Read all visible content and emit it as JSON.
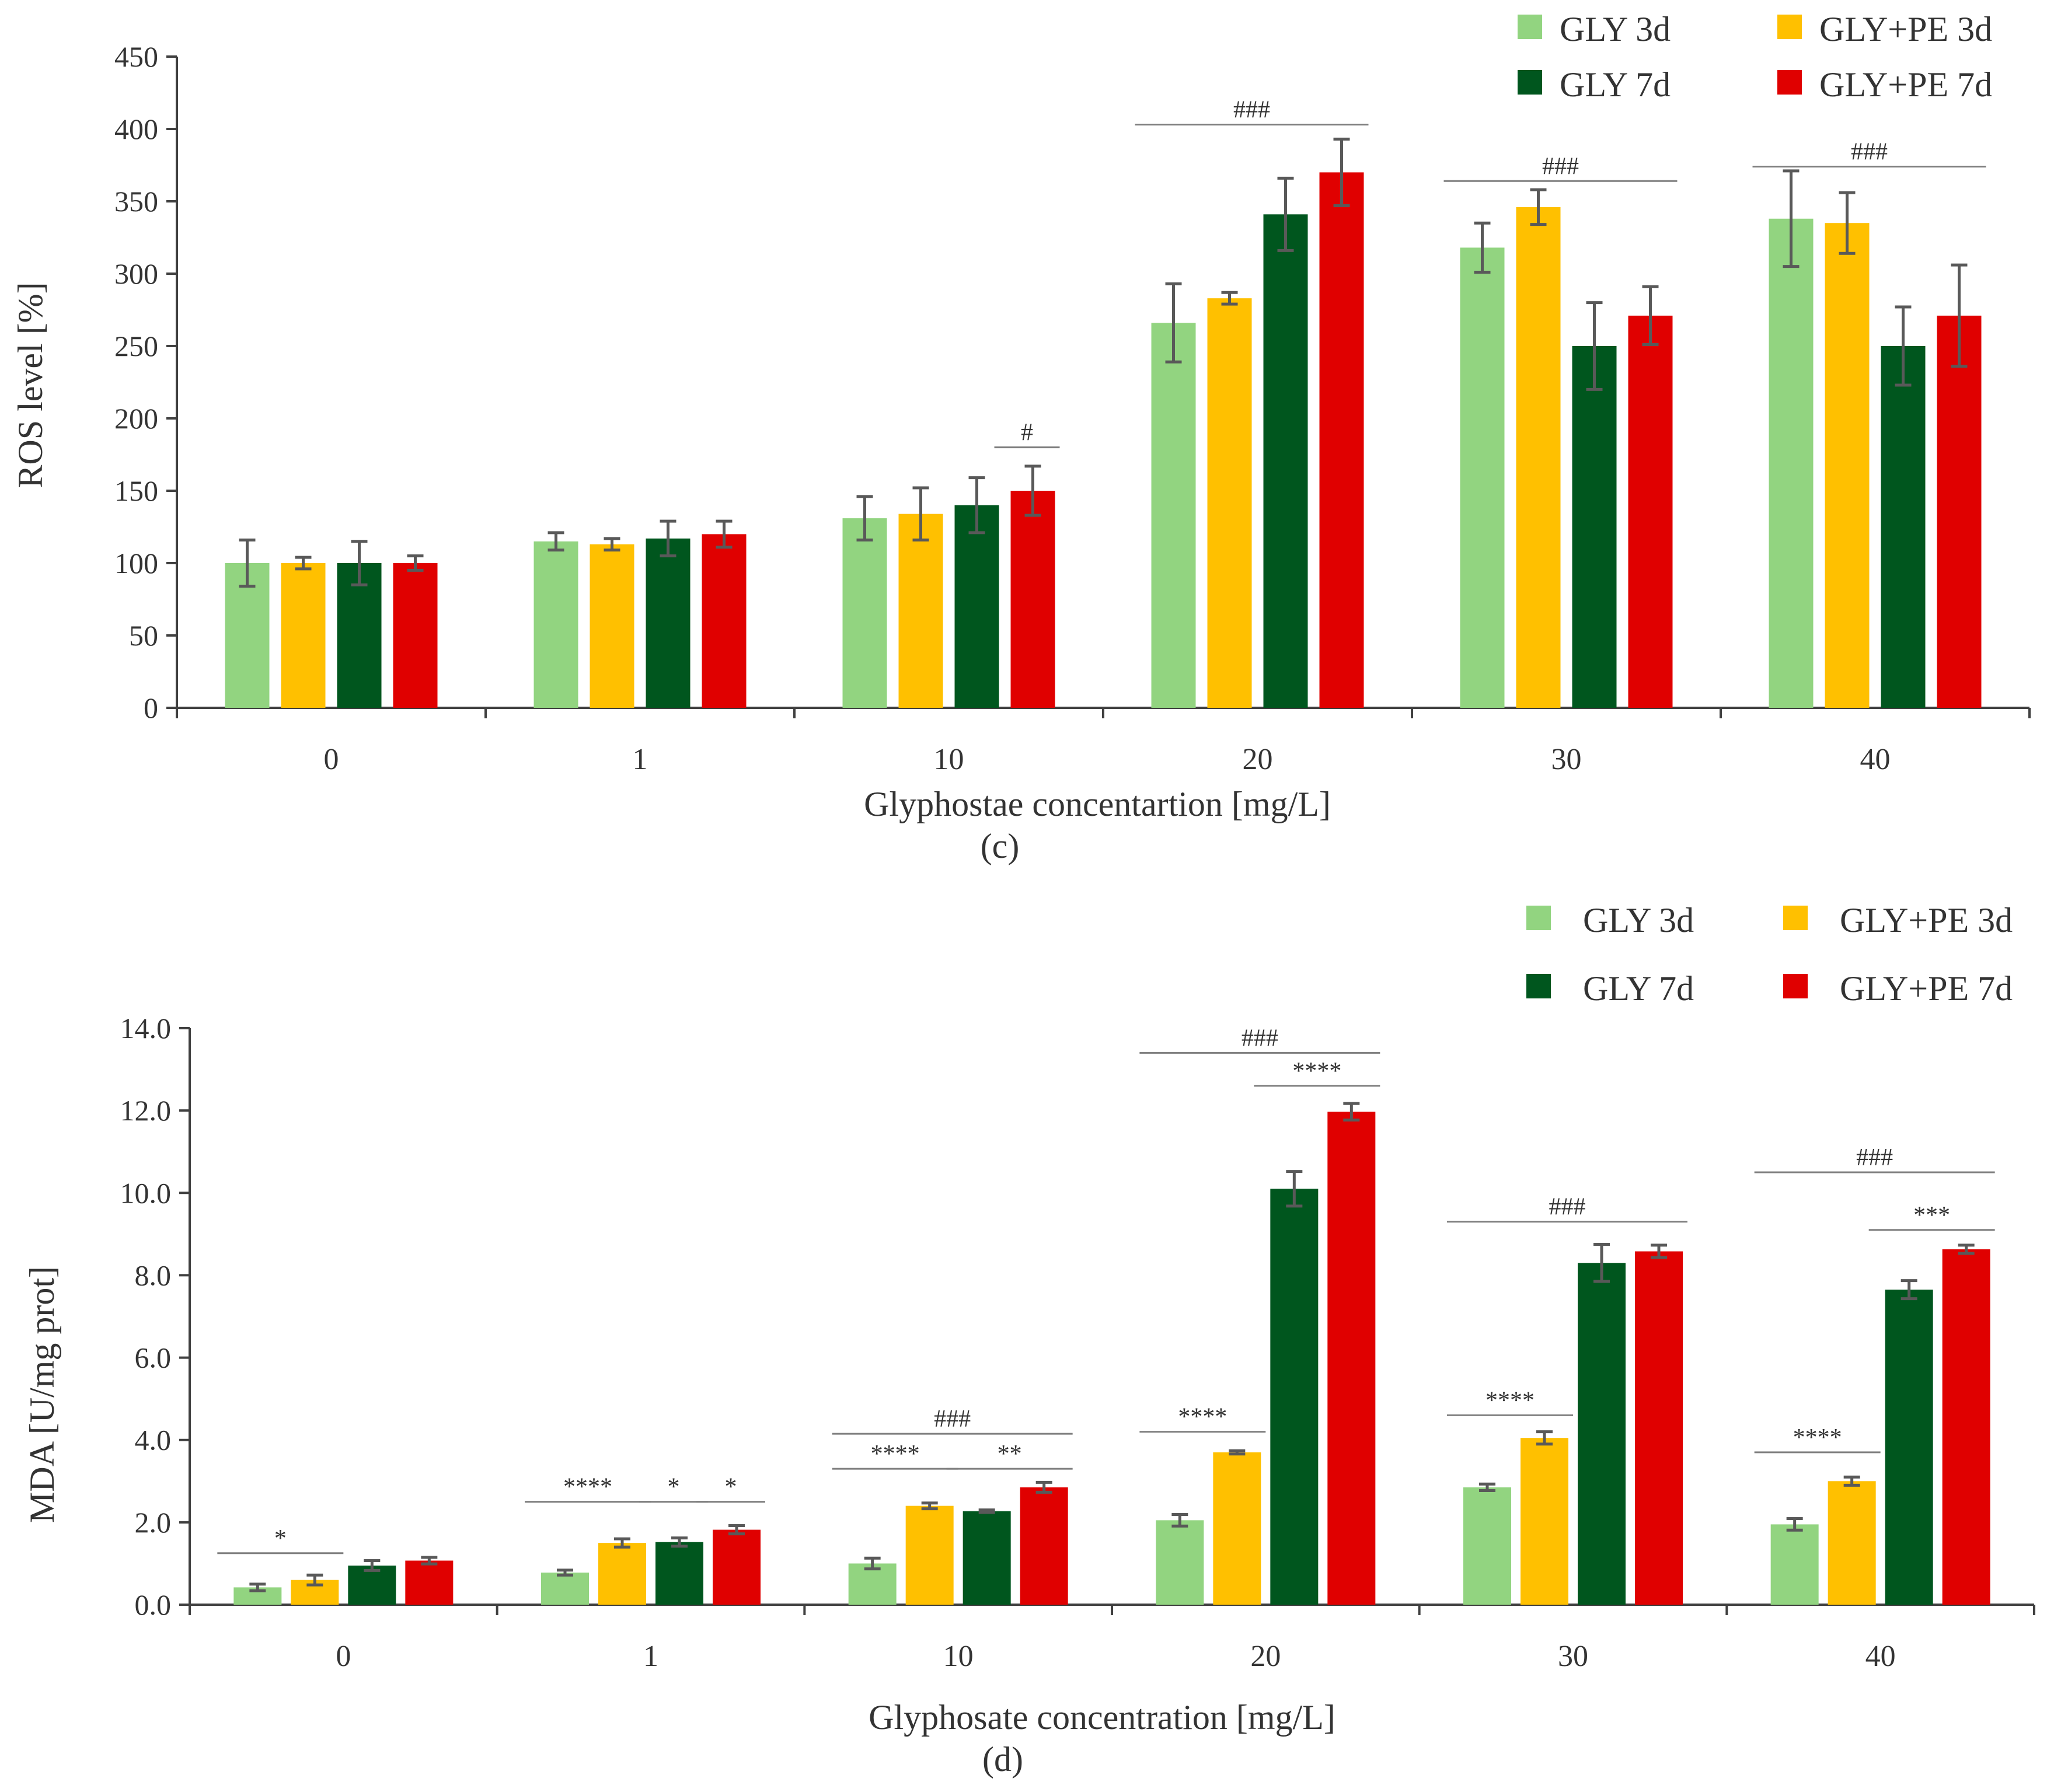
{
  "figure": {
    "series_colors": {
      "GLY 3d": "#92d480",
      "GLY+PE 3d": "#ffc000",
      "GLY 7d": "#00561e",
      "GLY+PE 7d": "#e00000"
    },
    "error_bar_color": "#595959",
    "axis_color": "#404040"
  },
  "chart_data": [
    {
      "id": "c",
      "type": "bar",
      "panel_label": "(c)",
      "title": "",
      "xlabel": "Glyphostae concentartion [mg/L]",
      "ylabel": "ROS level [%]",
      "ylim": [
        0,
        450
      ],
      "yticks": [
        0,
        50,
        100,
        150,
        200,
        250,
        300,
        350,
        400,
        450
      ],
      "ytick_labels": [
        "0",
        "50",
        "100",
        "150",
        "200",
        "250",
        "300",
        "350",
        "400",
        "450"
      ],
      "categories": [
        "0",
        "1",
        "10",
        "20",
        "30",
        "40"
      ],
      "legend_position": "top-right",
      "series": [
        {
          "name": "GLY 3d",
          "values": [
            100,
            115,
            131,
            266,
            318,
            338
          ],
          "errors": [
            16,
            6,
            15,
            27,
            17,
            33
          ]
        },
        {
          "name": "GLY+PE 3d",
          "values": [
            100,
            113,
            134,
            283,
            346,
            335
          ],
          "errors": [
            4,
            4,
            18,
            4,
            12,
            21
          ]
        },
        {
          "name": "GLY 7d",
          "values": [
            100,
            117,
            140,
            341,
            250,
            250
          ],
          "errors": [
            15,
            12,
            19,
            25,
            30,
            27
          ]
        },
        {
          "name": "GLY+PE 7d",
          "values": [
            100,
            120,
            150,
            370,
            271,
            271
          ],
          "errors": [
            5,
            9,
            17,
            23,
            20,
            35
          ]
        }
      ],
      "annotations": [
        {
          "text": "#",
          "category": "10",
          "from_series": 3,
          "to_series": 3,
          "y": 180
        },
        {
          "text": "###",
          "category": "20",
          "from_series": 0,
          "to_series": 3,
          "y": 403
        },
        {
          "text": "###",
          "category": "30",
          "from_series": 0,
          "to_series": 3,
          "y": 364
        },
        {
          "text": "###",
          "category": "40",
          "from_series": 0,
          "to_series": 3,
          "y": 374
        }
      ]
    },
    {
      "id": "d",
      "type": "bar",
      "panel_label": "(d)",
      "title": "",
      "xlabel": "Glyphosate concentration [mg/L]",
      "ylabel": "MDA [U/mg prot]",
      "ylim": [
        0,
        14
      ],
      "yticks": [
        0,
        2,
        4,
        6,
        8,
        10,
        12,
        14
      ],
      "ytick_labels": [
        "0.0",
        "2.0",
        "4.0",
        "6.0",
        "8.0",
        "10.0",
        "12.0",
        "14.0"
      ],
      "categories": [
        "0",
        "1",
        "10",
        "20",
        "30",
        "40"
      ],
      "legend_position": "top-right",
      "series": [
        {
          "name": "GLY 3d",
          "values": [
            0.42,
            0.78,
            1.0,
            2.05,
            2.85,
            1.95
          ],
          "errors": [
            0.08,
            0.06,
            0.13,
            0.14,
            0.08,
            0.14
          ]
        },
        {
          "name": "GLY+PE 3d",
          "values": [
            0.6,
            1.5,
            2.4,
            3.7,
            4.05,
            3.0
          ],
          "errors": [
            0.12,
            0.1,
            0.07,
            0.04,
            0.15,
            0.1
          ]
        },
        {
          "name": "GLY 7d",
          "values": [
            0.95,
            1.52,
            2.27,
            10.1,
            8.3,
            7.65
          ],
          "errors": [
            0.12,
            0.1,
            0.03,
            0.42,
            0.45,
            0.22
          ]
        },
        {
          "name": "GLY+PE 7d",
          "values": [
            1.07,
            1.82,
            2.85,
            11.97,
            8.58,
            8.63
          ],
          "errors": [
            0.08,
            0.1,
            0.12,
            0.2,
            0.15,
            0.1
          ]
        }
      ],
      "annotations": [
        {
          "text": "*",
          "category": "0",
          "from_series": 0,
          "to_series": 1,
          "y": 1.25
        },
        {
          "text": "****",
          "category": "1",
          "from_series": 0,
          "to_series": 1,
          "y": 2.5
        },
        {
          "text": "*",
          "category": "1",
          "from_series": 2,
          "to_series": 2,
          "y": 2.5
        },
        {
          "text": "*",
          "category": "1",
          "from_series": 3,
          "to_series": 3,
          "y": 2.5
        },
        {
          "text": "###",
          "category": "10",
          "from_series": 0,
          "to_series": 3,
          "y": 4.15
        },
        {
          "text": "****",
          "category": "10",
          "from_series": 0,
          "to_series": 1,
          "y": 3.3
        },
        {
          "text": "**",
          "category": "10",
          "from_series": 2,
          "to_series": 3,
          "y": 3.3
        },
        {
          "text": "###",
          "category": "20",
          "from_series": 0,
          "to_series": 3,
          "y": 13.4
        },
        {
          "text": "****",
          "category": "20",
          "from_series": 2,
          "to_series": 3,
          "y": 12.6
        },
        {
          "text": "****",
          "category": "20",
          "from_series": 0,
          "to_series": 1,
          "y": 4.2
        },
        {
          "text": "###",
          "category": "30",
          "from_series": 0,
          "to_series": 3,
          "y": 9.3
        },
        {
          "text": "****",
          "category": "30",
          "from_series": 0,
          "to_series": 1,
          "y": 4.6
        },
        {
          "text": "###",
          "category": "40",
          "from_series": 0,
          "to_series": 3,
          "y": 10.5
        },
        {
          "text": "***",
          "category": "40",
          "from_series": 2,
          "to_series": 3,
          "y": 9.1
        },
        {
          "text": "****",
          "category": "40",
          "from_series": 0,
          "to_series": 1,
          "y": 3.7
        }
      ]
    }
  ]
}
